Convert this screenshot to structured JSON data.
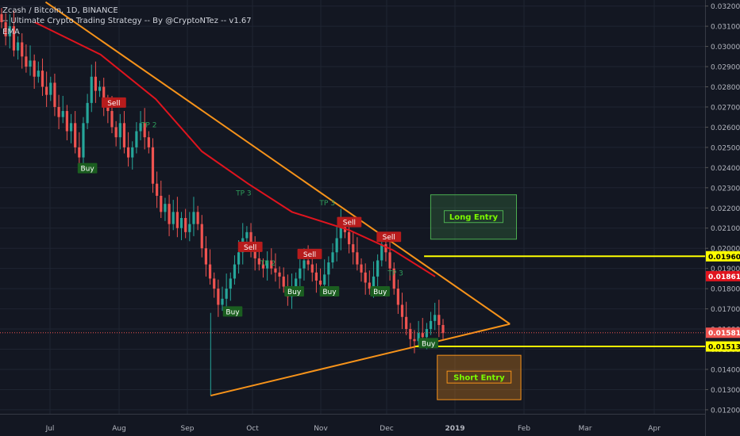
{
  "header": {
    "title": "Zcash / Bitcoin, 1D, BINANCE",
    "indicator": "-- Ultimate Crypto Trading Strategy -- By @CryptoNTez -- v1.67",
    "ema_label": "EMA"
  },
  "colors": {
    "background": "#131722",
    "grid": "#1f2532",
    "up_candle": "#26a69a",
    "down_candle": "#ef5350",
    "ema": "#e0141e",
    "trendline": "#f7931a",
    "horizontal_level": "#ffff00",
    "long_box": "#4caf50",
    "short_box": "#f7931a",
    "axis_text": "#b2b5be"
  },
  "chart_data": {
    "type": "candlestick",
    "y_scale": "linear",
    "ylim": [
      0.0118,
      0.0323
    ],
    "x_ticks": [
      "Jul",
      "Aug",
      "Sep",
      "Oct",
      "Nov",
      "Dec",
      "2019",
      "Feb",
      "Mar",
      "Apr"
    ],
    "y_ticks": [
      "0.032000",
      "0.031000",
      "0.030000",
      "0.029000",
      "0.028000",
      "0.027000",
      "0.026000",
      "0.025000",
      "0.024000",
      "0.023000",
      "0.022000",
      "0.021000",
      "0.020000",
      "0.019000",
      "0.018000",
      "0.017000",
      "0.016000",
      "0.015000",
      "0.014000",
      "0.013000",
      "0.012000"
    ],
    "price_labels": [
      {
        "value": 0.019604,
        "text": "0.019604",
        "color": "#ffff00",
        "text_color": "#000000"
      },
      {
        "value": 0.018619,
        "text": "0.018619",
        "color": "#e0141e",
        "text_color": "#ffffff"
      },
      {
        "value": 0.015816,
        "text": "0.015816",
        "color": "#ef5350",
        "text_color": "#ffffff"
      },
      {
        "value": 0.015136,
        "text": "0.015136",
        "color": "#ffff00",
        "text_color": "#000000"
      }
    ],
    "closes": [
      0.0312,
      0.0305,
      0.031,
      0.0298,
      0.0302,
      0.0295,
      0.029,
      0.0293,
      0.0285,
      0.0288,
      0.028,
      0.0276,
      0.0282,
      0.027,
      0.0265,
      0.0268,
      0.0258,
      0.0262,
      0.025,
      0.0245,
      0.0262,
      0.0272,
      0.0285,
      0.0278,
      0.028,
      0.027,
      0.0268,
      0.026,
      0.0255,
      0.0262,
      0.025,
      0.0245,
      0.025,
      0.0258,
      0.0262,
      0.0255,
      0.025,
      0.0232,
      0.0226,
      0.0218,
      0.0222,
      0.0212,
      0.0218,
      0.021,
      0.0215,
      0.0208,
      0.0212,
      0.0218,
      0.0212,
      0.02,
      0.0192,
      0.0185,
      0.018,
      0.0172,
      0.0175,
      0.018,
      0.0185,
      0.0192,
      0.0198,
      0.0205,
      0.0208,
      0.02,
      0.0195,
      0.0192,
      0.019,
      0.0194,
      0.019,
      0.0188,
      0.0186,
      0.0181,
      0.0176,
      0.018,
      0.0185,
      0.019,
      0.0194,
      0.0192,
      0.0188,
      0.0184,
      0.0182,
      0.0187,
      0.0193,
      0.0198,
      0.0205,
      0.0212,
      0.0208,
      0.0202,
      0.0198,
      0.0192,
      0.0188,
      0.0183,
      0.018,
      0.0186,
      0.0194,
      0.0202,
      0.0198,
      0.019,
      0.018,
      0.0172,
      0.0166,
      0.016,
      0.0155,
      0.0154,
      0.0158,
      0.0156,
      0.016,
      0.0164,
      0.0167,
      0.0162,
      0.0158
    ],
    "ema_points": [
      {
        "date": "2018-06-24",
        "value": 0.0312
      },
      {
        "date": "2018-07-24",
        "value": 0.0296
      },
      {
        "date": "2018-08-18",
        "value": 0.0274
      },
      {
        "date": "2018-09-08",
        "value": 0.0248
      },
      {
        "date": "2018-09-29",
        "value": 0.0232
      },
      {
        "date": "2018-10-19",
        "value": 0.0218
      },
      {
        "date": "2018-11-14",
        "value": 0.0209
      },
      {
        "date": "2018-12-04",
        "value": 0.0199
      },
      {
        "date": "2018-12-23",
        "value": 0.0186
      }
    ],
    "trendlines": [
      {
        "from": {
          "date": "2018-06-29",
          "value": 0.0322
        },
        "to": {
          "date": "2019-01-26",
          "value": 0.01625
        }
      },
      {
        "from": {
          "date": "2018-09-12",
          "value": 0.0127
        },
        "to": {
          "date": "2019-01-26",
          "value": 0.01625
        }
      }
    ],
    "horizontal_levels": [
      {
        "value": 0.019604,
        "from_date": "2018-12-18"
      },
      {
        "value": 0.015136,
        "from_date": "2018-12-14"
      }
    ],
    "zones": [
      {
        "label": "Long Entry",
        "from_date": "2018-12-21",
        "to_date": "2019-01-29",
        "top": 0.02265,
        "bottom": 0.02045,
        "kind": "long"
      },
      {
        "label": "Short Entry",
        "from_date": "2018-12-24",
        "to_date": "2019-01-31",
        "top": 0.0147,
        "bottom": 0.0125,
        "kind": "short"
      }
    ],
    "signals": [
      {
        "text": "Buy",
        "kind": "buy",
        "date": "2018-07-18",
        "value": 0.02395
      },
      {
        "text": "Sell",
        "kind": "sell",
        "date": "2018-07-30",
        "value": 0.0272
      },
      {
        "text": "Buy",
        "kind": "buy",
        "date": "2018-09-22",
        "value": 0.01685
      },
      {
        "text": "Sell",
        "kind": "sell",
        "date": "2018-09-30",
        "value": 0.02005
      },
      {
        "text": "Sell",
        "kind": "sell",
        "date": "2018-10-27",
        "value": 0.0197
      },
      {
        "text": "Buy",
        "kind": "buy",
        "date": "2018-10-20",
        "value": 0.01785
      },
      {
        "text": "Buy",
        "kind": "buy",
        "date": "2018-11-05",
        "value": 0.01785
      },
      {
        "text": "Sell",
        "kind": "sell",
        "date": "2018-11-14",
        "value": 0.02128
      },
      {
        "text": "Sell",
        "kind": "sell",
        "date": "2018-12-02",
        "value": 0.02055
      },
      {
        "text": "Buy",
        "kind": "buy",
        "date": "2018-11-28",
        "value": 0.01785
      },
      {
        "text": "Buy",
        "kind": "buy",
        "date": "2018-12-20",
        "value": 0.01528
      }
    ],
    "take_profit_labels": [
      {
        "text": "TP 2",
        "date": "2018-08-15",
        "value": 0.026
      },
      {
        "text": "TP 3",
        "date": "2018-09-27",
        "value": 0.02262
      },
      {
        "text": "TP 2",
        "date": "2018-10-08",
        "value": 0.01915
      },
      {
        "text": "TP 3",
        "date": "2018-11-04",
        "value": 0.02213
      },
      {
        "text": "TP 3",
        "date": "2018-12-05",
        "value": 0.01865
      }
    ]
  }
}
